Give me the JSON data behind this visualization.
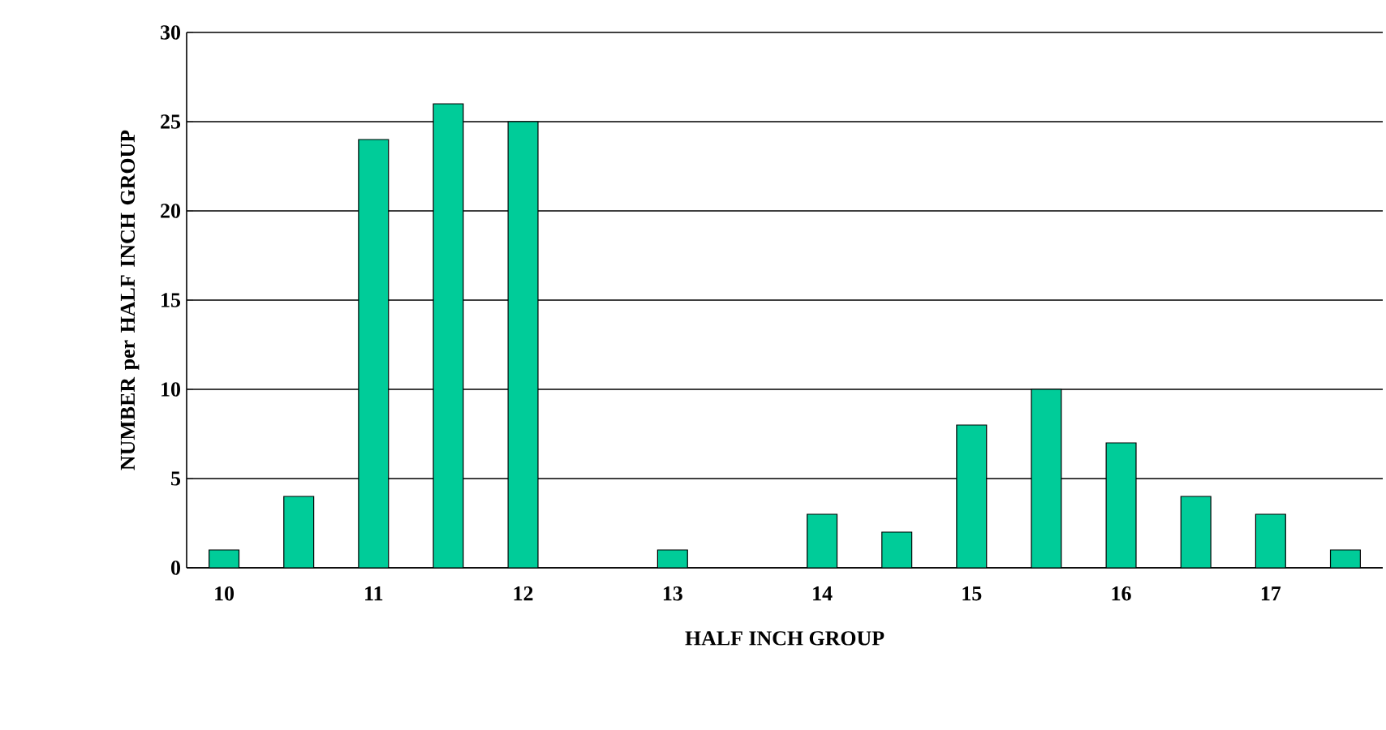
{
  "chart_data": {
    "type": "bar",
    "xlabel": "HALF INCH GROUP",
    "ylabel": "NUMBER per HALF INCH GROUP",
    "categories": [
      "10",
      null,
      "11",
      null,
      "12",
      null,
      "13",
      null,
      "14",
      null,
      "15",
      null,
      "16",
      null,
      "17",
      null
    ],
    "values": [
      1,
      4,
      24,
      26,
      25,
      null,
      1,
      null,
      3,
      2,
      8,
      10,
      7,
      4,
      3,
      1
    ],
    "color": "#00cc99",
    "ylim": [
      0,
      30
    ],
    "yticks": [
      0,
      5,
      10,
      15,
      20,
      25,
      30
    ],
    "grid": "y"
  }
}
